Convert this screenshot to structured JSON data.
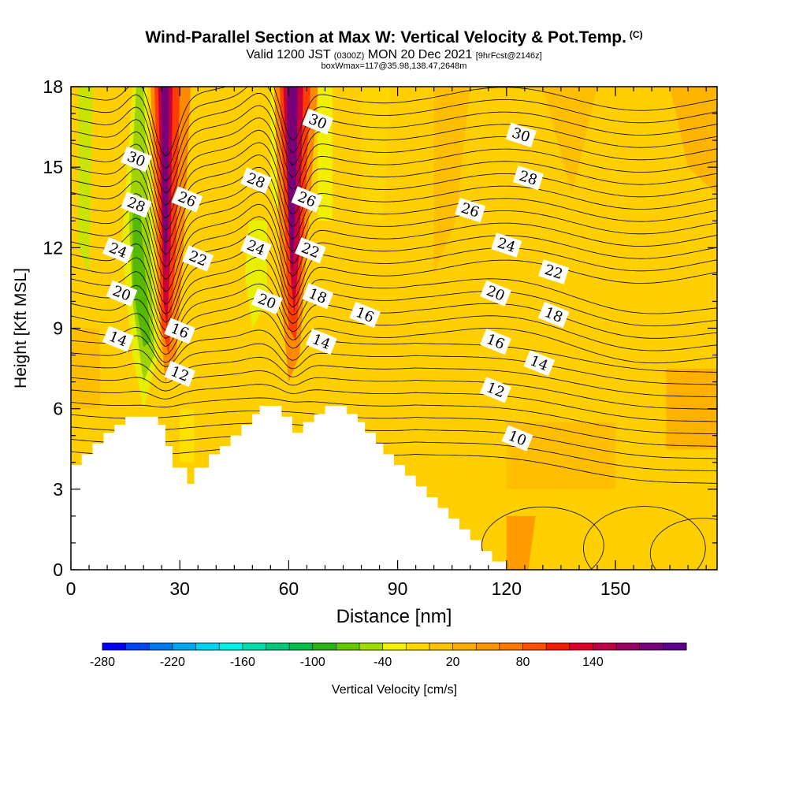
{
  "header": {
    "title": "Wind-Parallel Section at Max W: Vertical Velocity & Pot.Temp.",
    "copyright": "(C)",
    "valid_prefix": "Valid 1200 JST",
    "valid_zulu": "(0300Z)",
    "valid_date": "MON 20 Dec 2021",
    "forecast_info": "[9hrFcst@2146z]",
    "box_info": "boxWmax=117@35.98,138.47,2648m"
  },
  "chart_data": {
    "type": "heatmap",
    "xlabel": "Distance [nm]",
    "ylabel": "Height [Kft MSL]",
    "xlim": [
      0,
      178
    ],
    "ylim": [
      0,
      18
    ],
    "x_ticks": [
      "0",
      "30",
      "60",
      "90",
      "120",
      "150"
    ],
    "y_ticks": [
      "0",
      "3",
      "6",
      "9",
      "12",
      "15",
      "18"
    ],
    "x_tick_values": [
      0,
      30,
      60,
      90,
      120,
      150
    ],
    "y_tick_values": [
      0,
      3,
      6,
      9,
      12,
      15,
      18
    ],
    "terrain": [
      [
        0,
        3.9
      ],
      [
        3,
        3.9
      ],
      [
        3,
        4.3
      ],
      [
        6,
        4.3
      ],
      [
        6,
        4.7
      ],
      [
        9,
        4.7
      ],
      [
        9,
        5.1
      ],
      [
        12,
        5.1
      ],
      [
        12,
        5.4
      ],
      [
        15,
        5.4
      ],
      [
        15,
        5.7
      ],
      [
        24,
        5.7
      ],
      [
        24,
        5.4
      ],
      [
        26,
        5.4
      ],
      [
        26,
        4.6
      ],
      [
        28,
        4.6
      ],
      [
        28,
        3.8
      ],
      [
        32,
        3.8
      ],
      [
        32,
        3.2
      ],
      [
        34,
        3.2
      ],
      [
        34,
        3.8
      ],
      [
        38,
        3.8
      ],
      [
        38,
        4.3
      ],
      [
        41,
        4.3
      ],
      [
        41,
        4.6
      ],
      [
        44,
        4.6
      ],
      [
        44,
        5.0
      ],
      [
        47,
        5.0
      ],
      [
        47,
        5.4
      ],
      [
        50,
        5.4
      ],
      [
        50,
        5.8
      ],
      [
        52,
        5.8
      ],
      [
        52,
        6.1
      ],
      [
        58,
        6.1
      ],
      [
        58,
        5.7
      ],
      [
        61,
        5.7
      ],
      [
        61,
        5.1
      ],
      [
        64,
        5.1
      ],
      [
        64,
        5.5
      ],
      [
        67,
        5.5
      ],
      [
        67,
        5.8
      ],
      [
        70,
        5.8
      ],
      [
        70,
        6.1
      ],
      [
        76,
        6.1
      ],
      [
        76,
        5.8
      ],
      [
        79,
        5.8
      ],
      [
        79,
        5.5
      ],
      [
        81,
        5.5
      ],
      [
        81,
        5.1
      ],
      [
        84,
        5.1
      ],
      [
        84,
        4.7
      ],
      [
        86,
        4.7
      ],
      [
        86,
        4.3
      ],
      [
        89,
        4.3
      ],
      [
        89,
        3.9
      ],
      [
        92,
        3.9
      ],
      [
        92,
        3.5
      ],
      [
        95,
        3.5
      ],
      [
        95,
        3.1
      ],
      [
        98,
        3.1
      ],
      [
        98,
        2.7
      ],
      [
        101,
        2.7
      ],
      [
        101,
        2.3
      ],
      [
        104,
        2.3
      ],
      [
        104,
        1.9
      ],
      [
        107,
        1.9
      ],
      [
        107,
        1.5
      ],
      [
        110,
        1.5
      ],
      [
        110,
        1.1
      ],
      [
        113,
        1.1
      ],
      [
        113,
        0.7
      ],
      [
        116,
        0.7
      ],
      [
        116,
        0.3
      ],
      [
        120,
        0.3
      ],
      [
        120,
        0
      ]
    ],
    "shading_variable": "Vertical Velocity [cm/s]",
    "colorbar": {
      "label": "Vertical Velocity [cm/s]",
      "colors": [
        "#0000f5",
        "#0046f0",
        "#0078f0",
        "#00a6f0",
        "#00d2f0",
        "#00f0e6",
        "#00dcaa",
        "#00c878",
        "#00be46",
        "#28b414",
        "#64c800",
        "#a0dc00",
        "#f0f000",
        "#ffd700",
        "#ffc200",
        "#ffac00",
        "#ff9400",
        "#ff7800",
        "#ff5000",
        "#f01e00",
        "#dc0028",
        "#be0046",
        "#9b0064",
        "#780078",
        "#5a008c"
      ],
      "tick_labels": [
        "-280",
        "-220",
        "-160",
        "-100",
        "-40",
        "20",
        "80",
        "140"
      ]
    },
    "theta_contour_labels": [
      {
        "text": "30",
        "x": 18,
        "y": 15.3
      },
      {
        "text": "28",
        "x": 18,
        "y": 13.6
      },
      {
        "text": "24",
        "x": 13,
        "y": 11.9
      },
      {
        "text": "20",
        "x": 14,
        "y": 10.3
      },
      {
        "text": "14",
        "x": 13,
        "y": 8.6
      },
      {
        "text": "26",
        "x": 32,
        "y": 13.8
      },
      {
        "text": "22",
        "x": 35,
        "y": 11.6
      },
      {
        "text": "16",
        "x": 30,
        "y": 8.9
      },
      {
        "text": "12",
        "x": 30,
        "y": 7.3
      },
      {
        "text": "28",
        "x": 51,
        "y": 14.5
      },
      {
        "text": "24",
        "x": 51,
        "y": 12.0
      },
      {
        "text": "20",
        "x": 54,
        "y": 10.0
      },
      {
        "text": "30",
        "x": 68,
        "y": 16.7
      },
      {
        "text": "26",
        "x": 65,
        "y": 13.8
      },
      {
        "text": "22",
        "x": 66,
        "y": 11.9
      },
      {
        "text": "18",
        "x": 68,
        "y": 10.2
      },
      {
        "text": "14",
        "x": 69,
        "y": 8.5
      },
      {
        "text": "16",
        "x": 81,
        "y": 9.5
      },
      {
        "text": "26",
        "x": 110,
        "y": 13.4
      },
      {
        "text": "20",
        "x": 117,
        "y": 10.3
      },
      {
        "text": "16",
        "x": 117,
        "y": 8.5
      },
      {
        "text": "12",
        "x": 117,
        "y": 6.7
      },
      {
        "text": "10",
        "x": 123,
        "y": 4.9
      },
      {
        "text": "30",
        "x": 124,
        "y": 16.2
      },
      {
        "text": "28",
        "x": 126,
        "y": 14.6
      },
      {
        "text": "24",
        "x": 120,
        "y": 12.1
      },
      {
        "text": "22",
        "x": 133,
        "y": 11.1
      },
      {
        "text": "18",
        "x": 133,
        "y": 9.5
      },
      {
        "text": "14",
        "x": 129,
        "y": 7.7
      }
    ]
  }
}
